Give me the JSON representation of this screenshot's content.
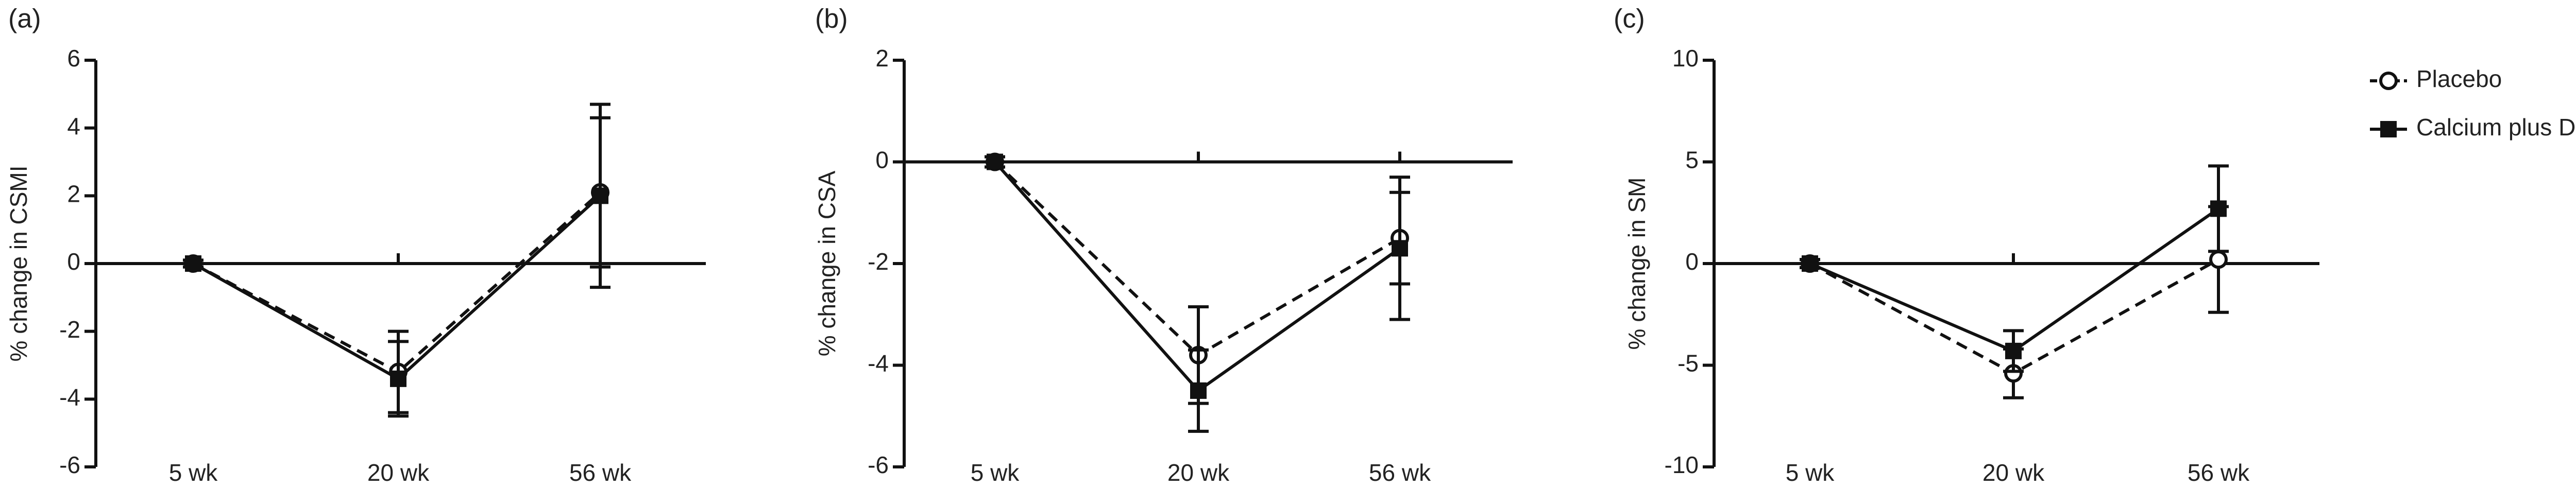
{
  "chart_data": [
    {
      "type": "line",
      "title": "(a)",
      "ylabel": "% change in CSMI",
      "categories": [
        "5 wk",
        "20 wk",
        "56 wk"
      ],
      "ylim": [
        -6,
        6
      ],
      "yticks": [
        -6,
        -4,
        -2,
        0,
        2,
        4,
        6
      ],
      "series": [
        {
          "color": "#111111",
          "dash": true,
          "marker": "circle",
          "values": [
            0,
            -3.2,
            2.1
          ],
          "errors": [
            0.1,
            1.2,
            2.2
          ]
        },
        {
          "color": "#111111",
          "dash": false,
          "marker": "square",
          "values": [
            0,
            -3.4,
            2.0
          ],
          "errors": [
            0.1,
            1.1,
            2.7
          ]
        }
      ]
    },
    {
      "type": "line",
      "title": "(b)",
      "ylabel": "% change in CSA",
      "categories": [
        "5 wk",
        "20 wk",
        "56 wk"
      ],
      "ylim": [
        -6,
        2
      ],
      "yticks": [
        -6,
        -4,
        -2,
        0,
        2
      ],
      "series": [
        {
          "color": "#111111",
          "dash": true,
          "marker": "circle",
          "values": [
            0,
            -3.8,
            -1.5
          ],
          "errors": [
            0.1,
            0.95,
            0.9
          ]
        },
        {
          "color": "#111111",
          "dash": false,
          "marker": "square",
          "values": [
            0,
            -4.5,
            -1.7
          ],
          "errors": [
            0.1,
            0.8,
            1.4
          ]
        }
      ]
    },
    {
      "type": "line",
      "title": "(c)",
      "ylabel": "% change in SM",
      "categories": [
        "5 wk",
        "20 wk",
        "56 wk"
      ],
      "ylim": [
        -10,
        10
      ],
      "yticks": [
        -10,
        -5,
        0,
        5,
        10
      ],
      "legend": "outside right",
      "series": [
        {
          "name": "Placebo",
          "color": "#111111",
          "dash": true,
          "marker": "circle",
          "values": [
            0,
            -5.4,
            0.2
          ],
          "errors": [
            0.2,
            1.2,
            2.6
          ]
        },
        {
          "name": "Calcium plus D",
          "color": "#111111",
          "dash": false,
          "marker": "square",
          "values": [
            0,
            -4.3,
            2.7
          ],
          "errors": [
            0.2,
            1.0,
            2.1
          ]
        }
      ]
    }
  ]
}
